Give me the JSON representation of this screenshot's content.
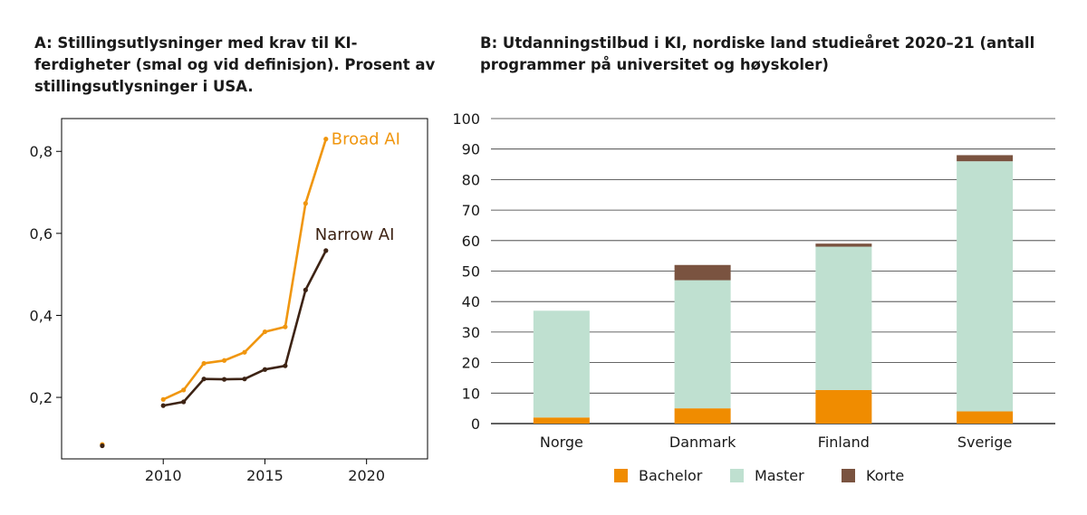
{
  "panel_a": {
    "title": "A: Stillingsutlysninger med krav til KI-ferdigheter (smal og vid definisjon). Prosent av stillingsutlysninger i USA.",
    "colors": {
      "broad": "#f0960f",
      "narrow": "#3d2314",
      "frame": "#000000"
    }
  },
  "panel_b": {
    "title": "B: Utdanningstilbud i KI, nordiske land studieåret 2020–21 (antall programmer på universitet og høyskoler)",
    "colors": {
      "bachelor": "#f08c00",
      "master": "#bfe0d0",
      "korte": "#7a5340",
      "grid": "#333333"
    }
  },
  "chart_data": [
    {
      "type": "line",
      "title": "A: Stillingsutlysninger med krav til KI-ferdigheter (smal og vid definisjon). Prosent av stillingsutlysninger i USA.",
      "xlabel": "",
      "ylabel": "",
      "xlim": [
        2005,
        2023
      ],
      "ylim": [
        0.05,
        0.88
      ],
      "x_ticks": [
        2010,
        2015,
        2020
      ],
      "x_tick_labels": [
        "2010",
        "2015",
        "2020"
      ],
      "y_ticks": [
        0.2,
        0.4,
        0.6,
        0.8
      ],
      "y_tick_labels": [
        "0,2",
        "0,4",
        "0,6",
        "0,8"
      ],
      "grid": false,
      "series": [
        {
          "name": "Broad AI",
          "color": "#f0960f",
          "points": [
            [
              2007,
              0.085
            ],
            [
              2010,
              0.195
            ],
            [
              2011,
              0.218
            ],
            [
              2012,
              0.283
            ],
            [
              2013,
              0.29
            ],
            [
              2014,
              0.31
            ],
            [
              2015,
              0.36
            ],
            [
              2016,
              0.372
            ],
            [
              2017,
              0.673
            ],
            [
              2018,
              0.83
            ]
          ]
        },
        {
          "name": "Narrow AI",
          "color": "#3d2314",
          "points": [
            [
              2007,
              0.082
            ],
            [
              2010,
              0.18
            ],
            [
              2011,
              0.189
            ],
            [
              2012,
              0.245
            ],
            [
              2013,
              0.244
            ],
            [
              2014,
              0.245
            ],
            [
              2015,
              0.268
            ],
            [
              2016,
              0.277
            ],
            [
              2017,
              0.462
            ],
            [
              2018,
              0.558
            ]
          ]
        }
      ]
    },
    {
      "type": "bar",
      "stacked": true,
      "title": "B: Utdanningstilbud i KI, nordiske land studieåret 2020–21 (antall programmer på universitet og høyskoler)",
      "xlabel": "",
      "ylabel": "",
      "ylim": [
        0,
        100
      ],
      "y_ticks": [
        0,
        10,
        20,
        30,
        40,
        50,
        60,
        70,
        80,
        90,
        100
      ],
      "grid": true,
      "legend": "bottom",
      "categories": [
        "Norge",
        "Danmark",
        "Finland",
        "Sverige"
      ],
      "series": [
        {
          "name": "Bachelor",
          "color": "#f08c00",
          "values": [
            2,
            5,
            11,
            4
          ]
        },
        {
          "name": "Master",
          "color": "#bfe0d0",
          "values": [
            35,
            42,
            47,
            82
          ]
        },
        {
          "name": "Korte",
          "color": "#7a5340",
          "values": [
            0,
            5,
            1,
            2
          ]
        }
      ]
    }
  ]
}
